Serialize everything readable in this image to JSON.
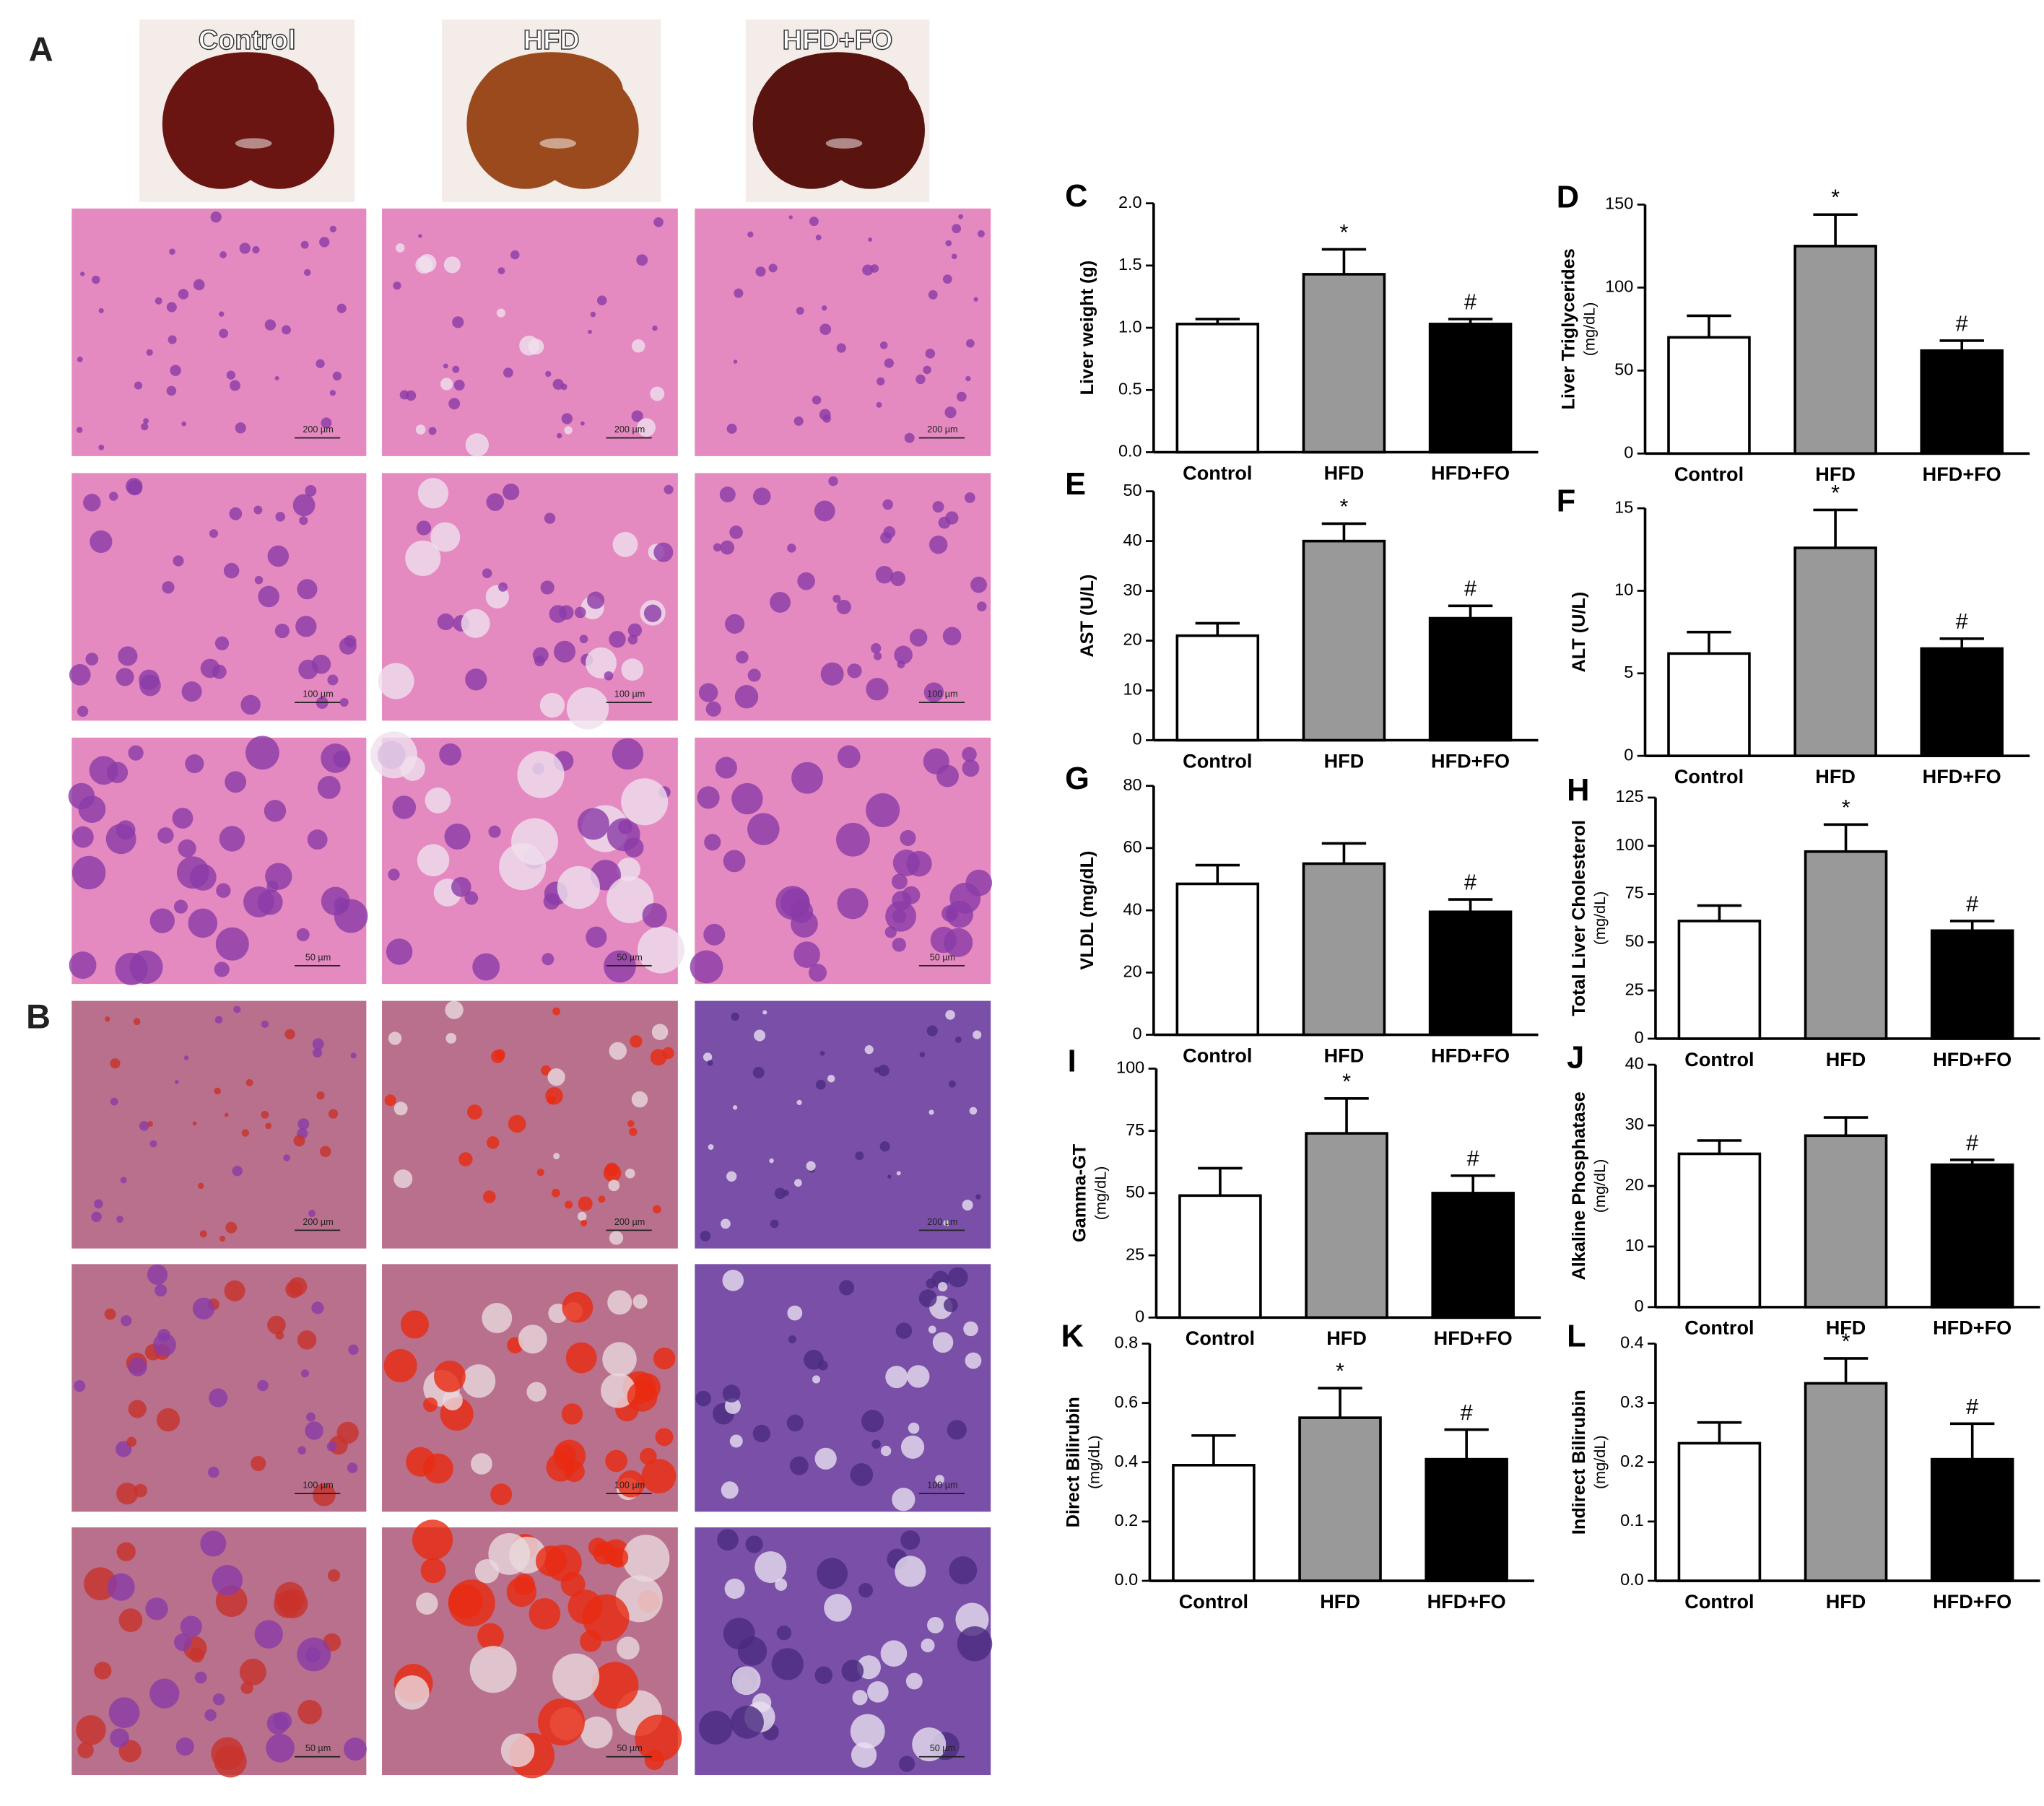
{
  "figure": {
    "panel_labels": [
      "A",
      "B"
    ],
    "groups": [
      "Control",
      "HFD",
      "HFD+FO"
    ],
    "scale_bars": [
      "200 µm",
      "100 µm",
      "50 µm"
    ]
  },
  "chart_data": [
    {
      "type": "bar",
      "panel": "C",
      "ylabel": [
        "Liver weight (g)"
      ],
      "categories": [
        "Control",
        "HFD",
        "HFD+FO"
      ],
      "values": [
        1.03,
        1.43,
        1.03
      ],
      "errors": [
        0.04,
        0.2,
        0.04
      ],
      "markers": [
        null,
        "*",
        "#"
      ],
      "colors": [
        "#ffffff",
        "#999999",
        "#000000"
      ],
      "ylim": [
        0,
        2
      ],
      "yticks": [
        {
          "value": 0,
          "label": "0.0"
        },
        0.5,
        {
          "value": 1,
          "label": "1.0"
        },
        1.5,
        {
          "value": 2,
          "label": "2.0"
        }
      ]
    },
    {
      "type": "bar",
      "panel": "D",
      "ylabel": [
        "Liver Triglycerides",
        "(mg/dL)"
      ],
      "categories": [
        "Control",
        "HFD",
        "HFD+FO"
      ],
      "values": [
        70,
        125,
        62
      ],
      "errors": [
        13,
        19,
        6
      ],
      "markers": [
        null,
        "*",
        "#"
      ],
      "colors": [
        "#ffffff",
        "#999999",
        "#000000"
      ],
      "ylim": [
        0,
        150
      ],
      "yticks": [
        0,
        50,
        100,
        150
      ]
    },
    {
      "type": "bar",
      "panel": "E",
      "ylabel": [
        "AST (U/L)"
      ],
      "categories": [
        "Control",
        "HFD",
        "HFD+FO"
      ],
      "values": [
        21,
        40,
        24.5
      ],
      "errors": [
        2.5,
        3.5,
        2.5
      ],
      "markers": [
        null,
        "*",
        "#"
      ],
      "colors": [
        "#ffffff",
        "#999999",
        "#000000"
      ],
      "ylim": [
        0,
        50
      ],
      "yticks": [
        0,
        10,
        20,
        30,
        40,
        50
      ]
    },
    {
      "type": "bar",
      "panel": "F",
      "ylabel": [
        "ALT (U/L)"
      ],
      "categories": [
        "Control",
        "HFD",
        "HFD+FO"
      ],
      "values": [
        6.2,
        12.6,
        6.5
      ],
      "errors": [
        1.3,
        2.3,
        0.6
      ],
      "markers": [
        null,
        "*",
        "#"
      ],
      "colors": [
        "#ffffff",
        "#999999",
        "#000000"
      ],
      "ylim": [
        0,
        15
      ],
      "yticks": [
        0,
        5,
        10,
        15
      ]
    },
    {
      "type": "bar",
      "panel": "G",
      "ylabel": [
        "VLDL (mg/dL)"
      ],
      "categories": [
        "Control",
        "HFD",
        "HFD+FO"
      ],
      "values": [
        48.5,
        55,
        39.5
      ],
      "errors": [
        6,
        6.5,
        4
      ],
      "markers": [
        null,
        null,
        "#"
      ],
      "colors": [
        "#ffffff",
        "#999999",
        "#000000"
      ],
      "ylim": [
        0,
        80
      ],
      "yticks": [
        0,
        20,
        40,
        60,
        80
      ]
    },
    {
      "type": "bar",
      "panel": "H",
      "ylabel": [
        "Total Liver Cholesterol",
        "(mg/dL)"
      ],
      "categories": [
        "Control",
        "HFD",
        "HFD+FO"
      ],
      "values": [
        61,
        97,
        56
      ],
      "errors": [
        8,
        14,
        5
      ],
      "markers": [
        null,
        "*",
        "#"
      ],
      "colors": [
        "#ffffff",
        "#999999",
        "#000000"
      ],
      "ylim": [
        0,
        125
      ],
      "yticks": [
        0,
        25,
        50,
        75,
        100,
        125
      ]
    },
    {
      "type": "bar",
      "panel": "I",
      "ylabel": [
        "Gamma-GT",
        "(mg/dL)"
      ],
      "categories": [
        "Control",
        "HFD",
        "HFD+FO"
      ],
      "values": [
        49,
        74,
        50
      ],
      "errors": [
        11,
        14,
        7
      ],
      "markers": [
        null,
        "*",
        "#"
      ],
      "colors": [
        "#ffffff",
        "#999999",
        "#000000"
      ],
      "ylim": [
        0,
        100
      ],
      "yticks": [
        0,
        25,
        50,
        75,
        100
      ]
    },
    {
      "type": "bar",
      "panel": "J",
      "ylabel": [
        "Alkaline Phosphatase",
        "(mg/dL)"
      ],
      "categories": [
        "Control",
        "HFD",
        "HFD+FO"
      ],
      "values": [
        25.3,
        28.3,
        23.5
      ],
      "errors": [
        2.2,
        3,
        0.8
      ],
      "markers": [
        null,
        null,
        "#"
      ],
      "colors": [
        "#ffffff",
        "#999999",
        "#000000"
      ],
      "ylim": [
        0,
        40
      ],
      "yticks": [
        0,
        10,
        20,
        30,
        40
      ]
    },
    {
      "type": "bar",
      "panel": "K",
      "ylabel": [
        "Direct Bilirubin",
        "(mg/dL)"
      ],
      "categories": [
        "Control",
        "HFD",
        "HFD+FO"
      ],
      "values": [
        0.39,
        0.55,
        0.41
      ],
      "errors": [
        0.1,
        0.1,
        0.1
      ],
      "markers": [
        null,
        "*",
        "#"
      ],
      "colors": [
        "#ffffff",
        "#999999",
        "#000000"
      ],
      "ylim": [
        0,
        0.8
      ],
      "yticks": [
        {
          "value": 0,
          "label": "0.0"
        },
        0.2,
        0.4,
        0.6,
        0.8
      ]
    },
    {
      "type": "bar",
      "panel": "L",
      "ylabel": [
        "Indirect Bilirubin",
        "(mg/dL)"
      ],
      "categories": [
        "Control",
        "HFD",
        "HFD+FO"
      ],
      "values": [
        0.232,
        0.333,
        0.205
      ],
      "errors": [
        0.035,
        0.042,
        0.06
      ],
      "markers": [
        null,
        "*",
        "#"
      ],
      "colors": [
        "#ffffff",
        "#999999",
        "#000000"
      ],
      "ylim": [
        0,
        0.4
      ],
      "yticks": [
        {
          "value": 0,
          "label": "0.0"
        },
        0.1,
        0.2,
        0.3,
        0.4
      ]
    }
  ]
}
